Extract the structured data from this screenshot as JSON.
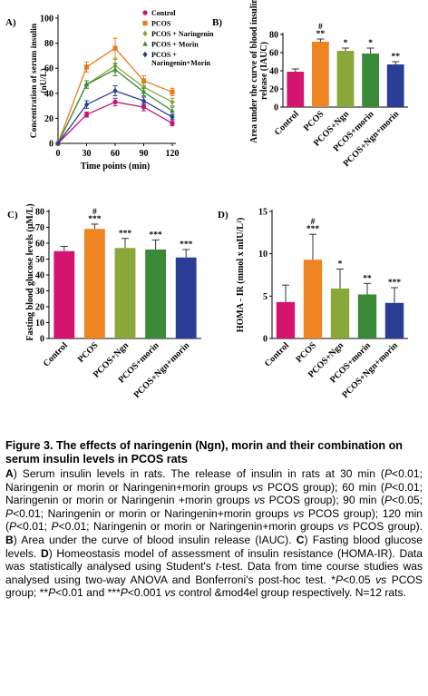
{
  "chart_data": [
    {
      "panel": "A)",
      "type": "line",
      "ylabel": "Concentration of serum insulin (nU/L)",
      "xlabel": "Time points (min)",
      "x": [
        0,
        30,
        60,
        90,
        120
      ],
      "xlim": [
        0,
        120
      ],
      "ylim": [
        0,
        100
      ],
      "xticks": [
        "0",
        "30",
        "60",
        "90",
        "120"
      ],
      "yticks": [
        "0",
        "20",
        "40",
        "60",
        "80",
        "100"
      ],
      "legend_position": "top-right",
      "series": [
        {
          "name": "Control",
          "color": "#c8146e",
          "marker": "circle",
          "values": [
            0,
            23,
            33,
            29,
            16
          ],
          "err": [
            0,
            2,
            3,
            3,
            2
          ]
        },
        {
          "name": "PCOS",
          "color": "#e87a1c",
          "marker": "square",
          "values": [
            0,
            61,
            76,
            50,
            41
          ],
          "err": [
            0,
            4,
            8,
            4,
            3
          ]
        },
        {
          "name": "PCOS + Naringenin",
          "color": "#8aa83a",
          "marker": "diamond",
          "values": [
            0,
            47,
            62,
            45,
            33
          ],
          "err": [
            0,
            3,
            5,
            3,
            3
          ]
        },
        {
          "name": "PCOS + Morin",
          "color": "#3a8a3a",
          "marker": "triangle",
          "values": [
            0,
            47,
            59,
            41,
            26
          ],
          "err": [
            0,
            3,
            5,
            3,
            3
          ]
        },
        {
          "name": "PCOS + Naringenin+Morin",
          "color": "#2a3e96",
          "marker": "diamond",
          "values": [
            0,
            31,
            42,
            34,
            21
          ],
          "err": [
            0,
            3,
            4,
            3,
            2
          ]
        }
      ]
    },
    {
      "panel": "B)",
      "type": "bar",
      "ylabel": "Area under the curve of blood insulin release (IAUC)",
      "categories": [
        "Control",
        "PCOS",
        "PCOS+Ngn",
        "PCOS+morin",
        "PCOS+Ngn+morin"
      ],
      "values": [
        39,
        72,
        62,
        59,
        47
      ],
      "err": [
        3,
        3,
        3,
        6,
        3
      ],
      "sig": [
        "",
        "#\n**",
        "*",
        "*",
        "**"
      ],
      "colors": [
        "#d4146e",
        "#ee8522",
        "#8aa83a",
        "#3a8a3a",
        "#2a3e96"
      ],
      "ylim": [
        0,
        80
      ],
      "yticks": [
        "0",
        "20",
        "40",
        "60",
        "80"
      ]
    },
    {
      "panel": "C)",
      "type": "bar",
      "ylabel": "Fasting blood glucose levels (μM/L)",
      "categories": [
        "Control",
        "PCOS",
        "PCOS+Ngn",
        "PCOS+morin",
        "PCOS+Ngn+morin"
      ],
      "values": [
        55,
        69,
        57,
        56,
        51
      ],
      "err": [
        3,
        3,
        6,
        6,
        5
      ],
      "sig": [
        "",
        "#\n***",
        "***",
        "***",
        "***"
      ],
      "colors": [
        "#d4146e",
        "#ee8522",
        "#8aa83a",
        "#3a8a3a",
        "#2a3e96"
      ],
      "ylim": [
        0,
        80
      ],
      "yticks": [
        "0",
        "10",
        "20",
        "30",
        "40",
        "50",
        "60",
        "70",
        "80"
      ]
    },
    {
      "panel": "D)",
      "type": "bar",
      "ylabel": "HOMA - IR (mmol x mIU/L²)",
      "categories": [
        "Control",
        "PCOS",
        "PCOS+Ngn",
        "PCOS+morin",
        "PCOS+Ngn+morin"
      ],
      "values": [
        4.3,
        9.3,
        5.9,
        5.2,
        4.2
      ],
      "err": [
        2.0,
        3.0,
        2.3,
        1.3,
        1.8
      ],
      "sig": [
        "",
        "#\n***",
        "*",
        "**",
        "***"
      ],
      "colors": [
        "#d4146e",
        "#ee8522",
        "#8aa83a",
        "#3a8a3a",
        "#2a3e96"
      ],
      "ylim": [
        0,
        15
      ],
      "yticks": [
        "0",
        "5",
        "10",
        "15"
      ]
    }
  ],
  "caption": {
    "title": "Figure 3. The effects of naringenin (Ngn), morin and their combination on serum insulin levels in PCOS rats",
    "segments": [
      {
        "t": "A",
        "b": true
      },
      {
        "t": ") Serum insulin levels in rats. The release of insulin in rats at 30 min ("
      },
      {
        "t": "P",
        "i": true
      },
      {
        "t": "<0.01; Naringenin or morin or Naringenin+morin groups "
      },
      {
        "t": "vs",
        "i": true
      },
      {
        "t": " PCOS group); 60 min ("
      },
      {
        "t": "P",
        "i": true
      },
      {
        "t": "<0.01; Naringenin or morin or Naringenin +morin groups "
      },
      {
        "t": "vs",
        "i": true
      },
      {
        "t": " PCOS group); 90 min ("
      },
      {
        "t": "P",
        "i": true
      },
      {
        "t": "<0.05; "
      },
      {
        "t": "P",
        "i": true
      },
      {
        "t": "<0.01; Naringenin or morin or Naringenin+morin groups "
      },
      {
        "t": "vs",
        "i": true
      },
      {
        "t": " PCOS group); 120 min ("
      },
      {
        "t": "P",
        "i": true
      },
      {
        "t": "<0.01; "
      },
      {
        "t": "P",
        "i": true
      },
      {
        "t": "<0.01; Naringenin or morin or Naringenin+morin groups "
      },
      {
        "t": "vs",
        "i": true
      },
      {
        "t": " PCOS group). "
      },
      {
        "t": "B",
        "b": true
      },
      {
        "t": ") Area under the curve of blood insulin release (IAUC). "
      },
      {
        "t": "C",
        "b": true
      },
      {
        "t": ") Fasting blood glucose levels. "
      },
      {
        "t": "D",
        "b": true
      },
      {
        "t": ") Homeostasis model of assessment of insulin resistance (HOMA-IR). Data was statistically analysed using Student's "
      },
      {
        "t": "t",
        "i": true
      },
      {
        "t": "-test. Data from time course studies was analysed using two-way ANOVA and Bonferroni's post-hoc test. *"
      },
      {
        "t": "P",
        "i": true
      },
      {
        "t": "<0.05 "
      },
      {
        "t": "vs",
        "i": true
      },
      {
        "t": " PCOS group; **"
      },
      {
        "t": "P",
        "i": true
      },
      {
        "t": "<0.01 and ***"
      },
      {
        "t": "P",
        "i": true
      },
      {
        "t": "<0.001 "
      },
      {
        "t": "vs",
        "i": true
      },
      {
        "t": " control &mod4el group respectively. N=12 rats."
      }
    ]
  }
}
